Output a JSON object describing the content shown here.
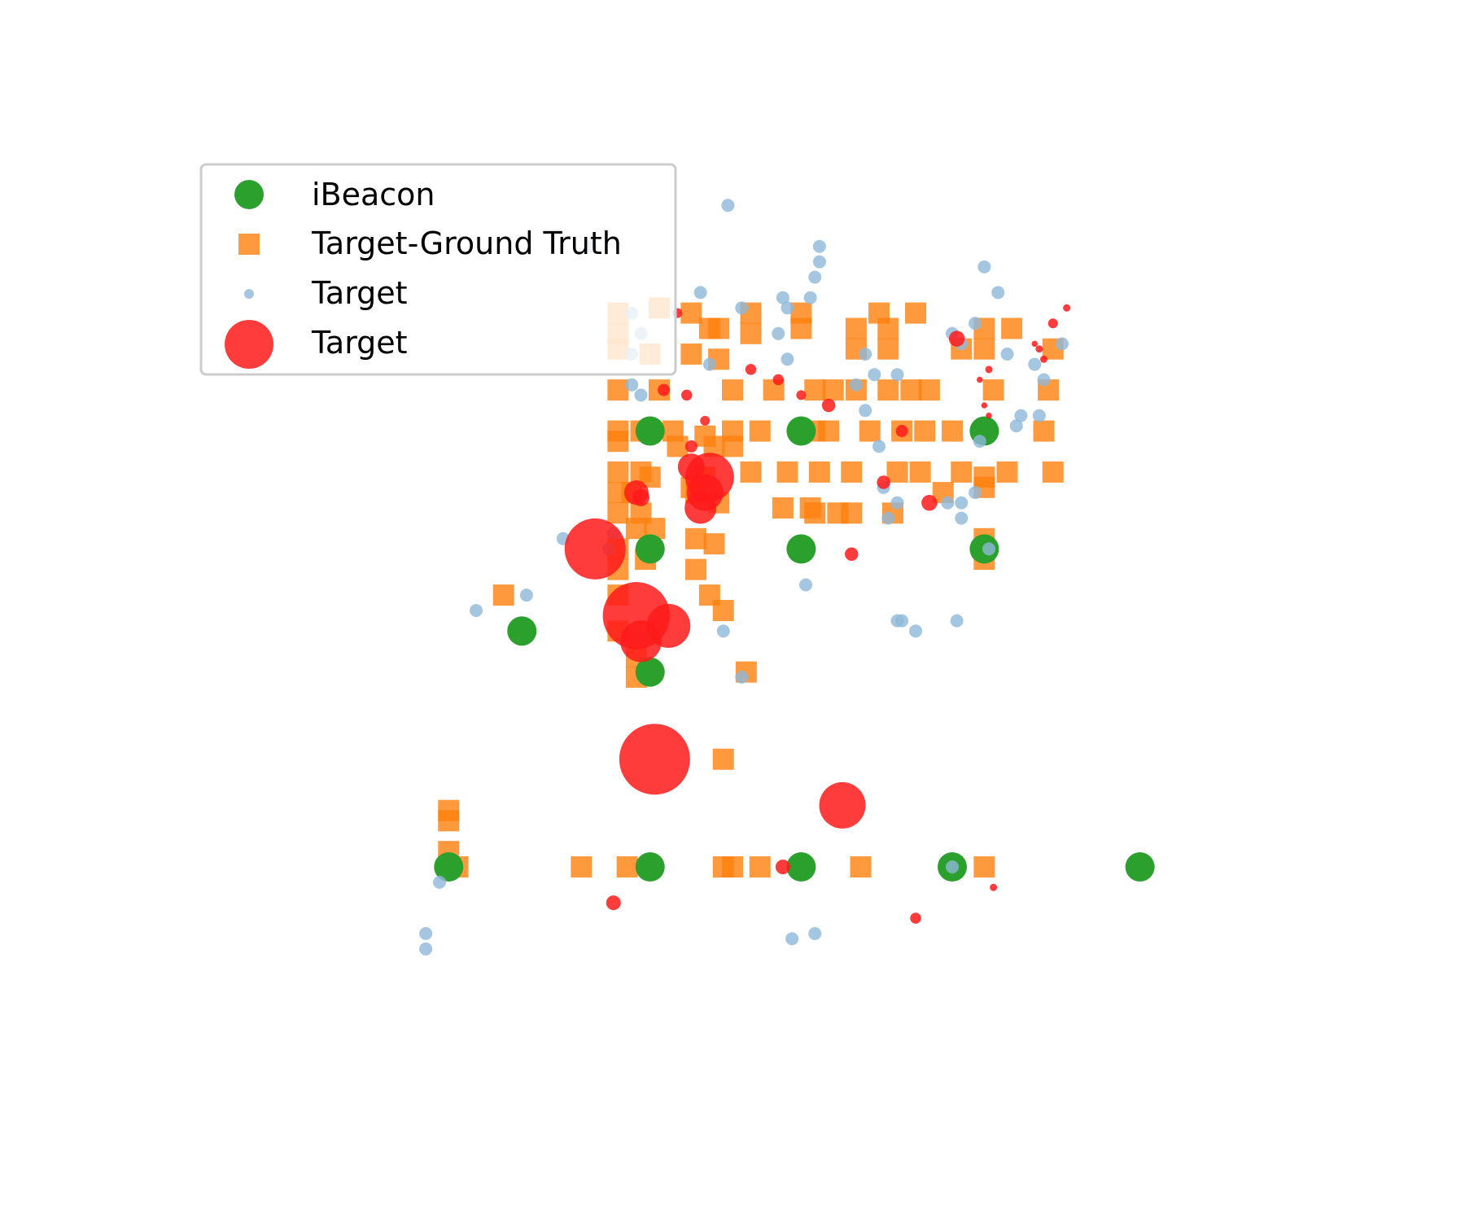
{
  "chart_data": {
    "type": "scatter",
    "title": "",
    "xlabel": "",
    "ylabel": "",
    "axes_visible": false,
    "grid": false,
    "xlim": [
      -12,
      12
    ],
    "ylim": [
      -10,
      10
    ],
    "legend": {
      "placement": "upper-left",
      "entries": [
        {
          "label": "iBeacon",
          "marker": "circle",
          "color": "#2ca02c"
        },
        {
          "label": "Target-Ground Truth",
          "marker": "square",
          "color": "#ff7f0e"
        },
        {
          "label": "Target",
          "marker": "small-circle",
          "color": "#8fb8d9"
        },
        {
          "label": "Target",
          "marker": "large-circle",
          "color": "#ff1a1a"
        }
      ]
    },
    "series": [
      {
        "name": "iBeacon",
        "color": "#2ca02c",
        "size": 18,
        "points": [
          [
            -1.8,
            3.5
          ],
          [
            1.5,
            3.5
          ],
          [
            5.5,
            3.5
          ],
          [
            -1.8,
            1.2
          ],
          [
            1.5,
            1.2
          ],
          [
            5.5,
            1.2
          ],
          [
            -4.6,
            -0.4
          ],
          [
            -1.8,
            -1.2
          ],
          [
            -6.2,
            -5.0
          ],
          [
            -1.8,
            -5.0
          ],
          [
            1.5,
            -5.0
          ],
          [
            4.8,
            -5.0
          ],
          [
            8.9,
            -5.0
          ]
        ]
      },
      {
        "name": "Target-Ground Truth",
        "color": "#ff7f0e",
        "points": [
          [
            -2.5,
            5.8
          ],
          [
            -1.6,
            5.9
          ],
          [
            -0.9,
            5.8
          ],
          [
            -0.3,
            5.5
          ],
          [
            0.4,
            5.8
          ],
          [
            1.5,
            5.8
          ],
          [
            3.2,
            5.8
          ],
          [
            4.0,
            5.8
          ],
          [
            -2.5,
            5.4
          ],
          [
            -0.5,
            5.5
          ],
          [
            0.4,
            5.4
          ],
          [
            1.5,
            5.5
          ],
          [
            2.7,
            5.5
          ],
          [
            3.4,
            5.5
          ],
          [
            5.5,
            5.5
          ],
          [
            6.1,
            5.5
          ],
          [
            -2.5,
            5.1
          ],
          [
            -1.8,
            5.0
          ],
          [
            -0.9,
            5.0
          ],
          [
            -0.3,
            4.9
          ],
          [
            2.7,
            5.1
          ],
          [
            3.4,
            5.1
          ],
          [
            5.0,
            5.1
          ],
          [
            5.5,
            5.1
          ],
          [
            7.0,
            5.1
          ],
          [
            -2.5,
            4.3
          ],
          [
            -1.6,
            4.3
          ],
          [
            0.0,
            4.3
          ],
          [
            0.9,
            4.3
          ],
          [
            1.8,
            4.3
          ],
          [
            2.2,
            4.3
          ],
          [
            2.7,
            4.3
          ],
          [
            3.4,
            4.3
          ],
          [
            3.9,
            4.3
          ],
          [
            4.3,
            4.3
          ],
          [
            5.7,
            4.3
          ],
          [
            6.9,
            4.3
          ],
          [
            -2.5,
            3.5
          ],
          [
            -2.0,
            3.5
          ],
          [
            -1.3,
            3.5
          ],
          [
            -0.6,
            3.4
          ],
          [
            0.0,
            3.5
          ],
          [
            0.6,
            3.5
          ],
          [
            1.8,
            3.5
          ],
          [
            2.1,
            3.5
          ],
          [
            3.0,
            3.5
          ],
          [
            3.7,
            3.5
          ],
          [
            4.2,
            3.5
          ],
          [
            4.8,
            3.5
          ],
          [
            6.8,
            3.5
          ],
          [
            -2.5,
            3.3
          ],
          [
            -1.2,
            3.2
          ],
          [
            -0.4,
            3.2
          ],
          [
            0.0,
            3.2
          ],
          [
            -2.5,
            2.7
          ],
          [
            -2.0,
            2.7
          ],
          [
            -1.8,
            2.6
          ],
          [
            -0.9,
            2.4
          ],
          [
            -0.6,
            2.6
          ],
          [
            0.4,
            2.7
          ],
          [
            1.2,
            2.7
          ],
          [
            1.9,
            2.7
          ],
          [
            2.6,
            2.7
          ],
          [
            3.6,
            2.7
          ],
          [
            4.1,
            2.7
          ],
          [
            5.0,
            2.7
          ],
          [
            5.5,
            2.6
          ],
          [
            6.0,
            2.7
          ],
          [
            7.0,
            2.7
          ],
          [
            -2.5,
            2.3
          ],
          [
            -2.2,
            2.3
          ],
          [
            -0.8,
            2.3
          ],
          [
            -0.3,
            2.1
          ],
          [
            4.6,
            2.3
          ],
          [
            5.5,
            2.4
          ],
          [
            -2.5,
            1.9
          ],
          [
            -2.0,
            1.9
          ],
          [
            -2.1,
            1.6
          ],
          [
            -1.7,
            1.6
          ],
          [
            1.1,
            2.0
          ],
          [
            1.7,
            2.0
          ],
          [
            1.8,
            1.9
          ],
          [
            2.3,
            1.9
          ],
          [
            2.6,
            1.9
          ],
          [
            3.5,
            1.9
          ],
          [
            -2.5,
            1.2
          ],
          [
            -1.9,
            1.0
          ],
          [
            -0.8,
            1.4
          ],
          [
            -0.4,
            1.3
          ],
          [
            5.5,
            1.4
          ],
          [
            5.5,
            1.0
          ],
          [
            -2.5,
            0.8
          ],
          [
            -2.5,
            0.3
          ],
          [
            -0.8,
            0.8
          ],
          [
            -0.5,
            0.3
          ],
          [
            -0.2,
            0.0
          ],
          [
            -5.0,
            0.3
          ],
          [
            -2.5,
            -0.4
          ],
          [
            -2.1,
            -0.9
          ],
          [
            -2.1,
            -1.3
          ],
          [
            0.3,
            -1.2
          ],
          [
            -0.2,
            -2.9
          ],
          [
            -6.2,
            -3.9
          ],
          [
            -6.2,
            -4.1
          ],
          [
            -6.2,
            -4.7
          ],
          [
            -6.0,
            -5.0
          ],
          [
            -3.3,
            -5.0
          ],
          [
            -2.3,
            -5.0
          ],
          [
            -0.2,
            -5.0
          ],
          [
            0.0,
            -5.0
          ],
          [
            0.6,
            -5.0
          ],
          [
            2.8,
            -5.0
          ],
          [
            5.5,
            -5.0
          ]
        ]
      },
      {
        "name": "Target",
        "color": "#8fb8d9",
        "points": [
          [
            -0.1,
            7.9
          ],
          [
            -3.1,
            7.1
          ],
          [
            1.9,
            7.1
          ],
          [
            1.9,
            6.8
          ],
          [
            1.8,
            6.5
          ],
          [
            1.7,
            6.1
          ],
          [
            -0.7,
            6.2
          ],
          [
            0.2,
            5.9
          ],
          [
            1.1,
            6.1
          ],
          [
            1.2,
            5.9
          ],
          [
            1.0,
            5.4
          ],
          [
            5.5,
            6.7
          ],
          [
            5.8,
            6.2
          ],
          [
            7.2,
            5.2
          ],
          [
            6.0,
            5.0
          ],
          [
            6.6,
            4.8
          ],
          [
            6.8,
            4.5
          ],
          [
            4.8,
            5.4
          ],
          [
            5.0,
            5.2
          ],
          [
            5.3,
            5.6
          ],
          [
            3.6,
            4.6
          ],
          [
            2.7,
            4.4
          ],
          [
            2.9,
            5.0
          ],
          [
            6.7,
            3.8
          ],
          [
            6.3,
            3.8
          ],
          [
            6.2,
            3.6
          ],
          [
            5.4,
            3.3
          ],
          [
            -2.2,
            5.8
          ],
          [
            -2.0,
            5.4
          ],
          [
            -2.2,
            5.0
          ],
          [
            -2.2,
            4.4
          ],
          [
            -2.0,
            4.2
          ],
          [
            -0.5,
            4.8
          ],
          [
            1.2,
            4.9
          ],
          [
            3.1,
            4.6
          ],
          [
            3.2,
            3.2
          ],
          [
            3.3,
            2.4
          ],
          [
            3.6,
            2.1
          ],
          [
            3.4,
            1.8
          ],
          [
            5.0,
            1.8
          ],
          [
            5.0,
            2.1
          ],
          [
            5.3,
            2.3
          ],
          [
            4.7,
            2.1
          ],
          [
            5.6,
            1.2
          ],
          [
            -3.7,
            1.4
          ],
          [
            -4.5,
            0.3
          ],
          [
            -5.6,
            0.0
          ],
          [
            1.6,
            0.5
          ],
          [
            -2.6,
            1.5
          ],
          [
            -2.7,
            1.2
          ],
          [
            3.6,
            -0.2
          ],
          [
            3.7,
            -0.2
          ],
          [
            4.0,
            -0.4
          ],
          [
            4.9,
            -0.2
          ],
          [
            -0.2,
            -0.4
          ],
          [
            0.2,
            -1.3
          ],
          [
            -6.7,
            -6.6
          ],
          [
            -6.7,
            -6.3
          ],
          [
            -6.4,
            -5.3
          ],
          [
            1.3,
            -6.4
          ],
          [
            1.8,
            -6.3
          ],
          [
            4.8,
            -5.0
          ],
          [
            2.9,
            3.9
          ]
        ]
      },
      {
        "name": "Target",
        "color": "#ff1a1a",
        "points": [
          [
            -3.0,
            1.2,
            50
          ],
          [
            -2.1,
            -0.1,
            55
          ],
          [
            -2.0,
            -0.6,
            34
          ],
          [
            -1.4,
            -0.3,
            36
          ],
          [
            -1.7,
            -2.9,
            58
          ],
          [
            2.4,
            -3.8,
            38
          ],
          [
            -0.5,
            2.6,
            40
          ],
          [
            -0.6,
            2.3,
            30
          ],
          [
            -0.7,
            2.0,
            26
          ],
          [
            -0.9,
            2.8,
            22
          ],
          [
            -2.1,
            2.3,
            20
          ],
          [
            -2.0,
            2.2,
            14
          ],
          [
            -0.9,
            3.2,
            10
          ],
          [
            -0.6,
            3.7,
            8
          ],
          [
            -1.5,
            4.3,
            10
          ],
          [
            1.5,
            4.2,
            8
          ],
          [
            1.0,
            4.5,
            9
          ],
          [
            0.4,
            4.7,
            9
          ],
          [
            2.1,
            4.0,
            11
          ],
          [
            3.7,
            3.5,
            10
          ],
          [
            3.3,
            2.5,
            11
          ],
          [
            4.3,
            2.1,
            13
          ],
          [
            2.6,
            1.1,
            11
          ],
          [
            4.9,
            5.3,
            13
          ],
          [
            7.0,
            5.6,
            8
          ],
          [
            7.3,
            5.9,
            6
          ],
          [
            6.7,
            5.1,
            6
          ],
          [
            6.8,
            4.9,
            6
          ],
          [
            6.6,
            5.2,
            5
          ],
          [
            5.6,
            4.7,
            6
          ],
          [
            5.4,
            4.5,
            5
          ],
          [
            5.5,
            4.0,
            5
          ],
          [
            5.6,
            3.8,
            5
          ],
          [
            1.1,
            -5.0,
            12
          ],
          [
            -2.6,
            -5.7,
            12
          ],
          [
            4.0,
            -6.0,
            9
          ],
          [
            5.7,
            -5.4,
            6
          ],
          [
            -1.2,
            5.8,
            8
          ],
          [
            -1.0,
            4.2,
            9
          ]
        ]
      }
    ]
  }
}
